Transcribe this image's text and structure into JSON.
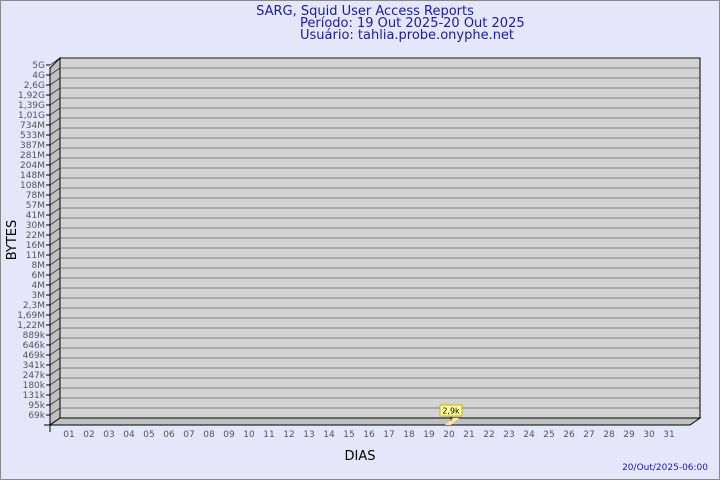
{
  "header": {
    "title": "SARG, Squid User Access Reports",
    "period": "Período: 19 Out 2025-20 Out 2025",
    "user": "Usuário: tahlia.probe.onyphe.net"
  },
  "footer": {
    "timestamp": "20/Out/2025-06:00"
  },
  "colors": {
    "background": "#e6e6fa",
    "plot": "#d3d3d3",
    "bar": "#ffe8a0",
    "title": "#1a1aa6"
  },
  "chart_data": {
    "type": "bar",
    "xlabel": "DIAS",
    "ylabel": "BYTES",
    "y_scale": "log",
    "y_ticks": [
      "5G",
      "4G",
      "2,6G",
      "1,92G",
      "1,39G",
      "1,01G",
      "734M",
      "533M",
      "387M",
      "281M",
      "204M",
      "148M",
      "108M",
      "78M",
      "57M",
      "41M",
      "30M",
      "22M",
      "16M",
      "11M",
      "8M",
      "6M",
      "4M",
      "3M",
      "2,3M",
      "1,69M",
      "1,22M",
      "889k",
      "646k",
      "469k",
      "341k",
      "247k",
      "180k",
      "131k",
      "95k",
      "69k"
    ],
    "categories": [
      "01",
      "02",
      "03",
      "04",
      "05",
      "06",
      "07",
      "08",
      "09",
      "10",
      "11",
      "12",
      "13",
      "14",
      "15",
      "16",
      "17",
      "18",
      "19",
      "20",
      "21",
      "22",
      "23",
      "24",
      "25",
      "26",
      "27",
      "28",
      "29",
      "30",
      "31"
    ],
    "bars": [
      {
        "day": "20",
        "value": 2900,
        "label": "2,9k"
      }
    ],
    "grid": true
  }
}
